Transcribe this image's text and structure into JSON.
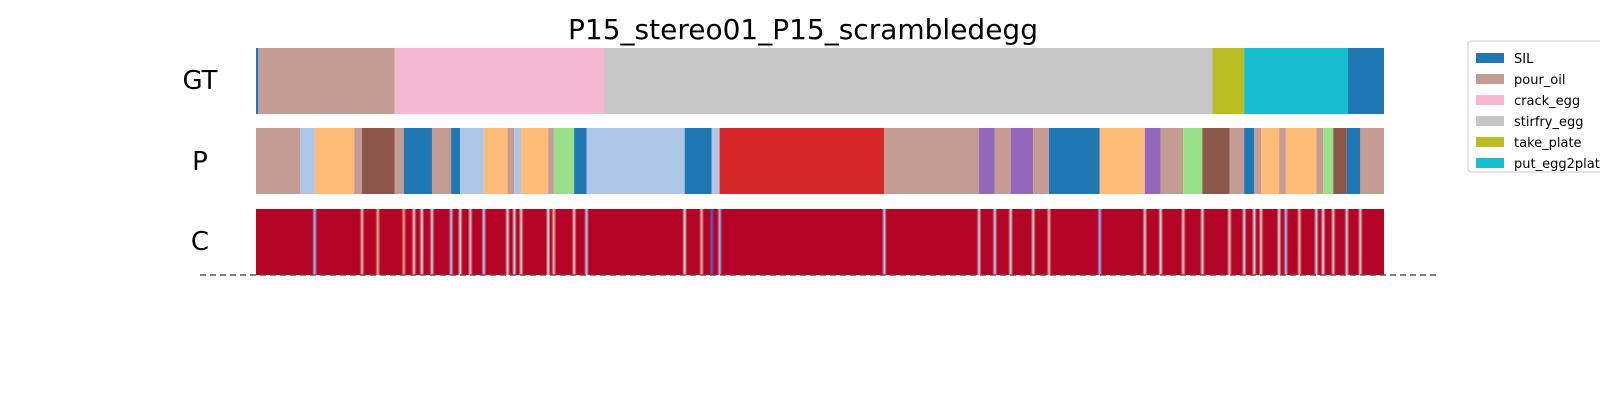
{
  "chart_data": {
    "type": "segmentation",
    "title": "P15_stereo01_P15_scrambledegg",
    "rows": [
      {
        "label": "GT"
      },
      {
        "label": "P"
      },
      {
        "label": "C"
      }
    ],
    "x_range": [
      0,
      1
    ],
    "legend": {
      "placement": "upper right, outside",
      "entries": [
        {
          "label": "SIL",
          "color": "#1f77b4"
        },
        {
          "label": "pour_oil",
          "color": "#c49c94"
        },
        {
          "label": "crack_egg",
          "color": "#f7b6d2"
        },
        {
          "label": "stirfry_egg",
          "color": "#c7c7c7"
        },
        {
          "label": "take_plate",
          "color": "#bcbd22"
        },
        {
          "label": "put_egg2plate",
          "color": "#17becf"
        }
      ]
    },
    "gt_segments": [
      {
        "start": 0.0,
        "end": 0.002,
        "color": "#1f77b4"
      },
      {
        "start": 0.002,
        "end": 0.123,
        "color": "#c49c94"
      },
      {
        "start": 0.123,
        "end": 0.308,
        "color": "#f7b6d2"
      },
      {
        "start": 0.308,
        "end": 0.848,
        "color": "#c7c7c7"
      },
      {
        "start": 0.848,
        "end": 0.876,
        "color": "#bcbd22"
      },
      {
        "start": 0.876,
        "end": 0.968,
        "color": "#17becf"
      },
      {
        "start": 0.968,
        "end": 1.0,
        "color": "#1f77b4"
      }
    ],
    "p_segments": [
      {
        "start": 0.0,
        "end": 0.039,
        "color": "#c49c94"
      },
      {
        "start": 0.039,
        "end": 0.052,
        "color": "#aec7e8"
      },
      {
        "start": 0.052,
        "end": 0.087,
        "color": "#ffbb78"
      },
      {
        "start": 0.087,
        "end": 0.094,
        "color": "#c49c94"
      },
      {
        "start": 0.094,
        "end": 0.123,
        "color": "#8c564b"
      },
      {
        "start": 0.123,
        "end": 0.131,
        "color": "#c49c94"
      },
      {
        "start": 0.131,
        "end": 0.156,
        "color": "#1f77b4"
      },
      {
        "start": 0.156,
        "end": 0.173,
        "color": "#c49c94"
      },
      {
        "start": 0.173,
        "end": 0.181,
        "color": "#1f77b4"
      },
      {
        "start": 0.181,
        "end": 0.202,
        "color": "#aec7e8"
      },
      {
        "start": 0.202,
        "end": 0.223,
        "color": "#ffbb78"
      },
      {
        "start": 0.223,
        "end": 0.229,
        "color": "#c49c94"
      },
      {
        "start": 0.229,
        "end": 0.235,
        "color": "#aec7e8"
      },
      {
        "start": 0.235,
        "end": 0.259,
        "color": "#ffbb78"
      },
      {
        "start": 0.259,
        "end": 0.264,
        "color": "#c49c94"
      },
      {
        "start": 0.264,
        "end": 0.282,
        "color": "#98df8a"
      },
      {
        "start": 0.282,
        "end": 0.293,
        "color": "#1f77b4"
      },
      {
        "start": 0.293,
        "end": 0.38,
        "color": "#aec7e8"
      },
      {
        "start": 0.38,
        "end": 0.404,
        "color": "#1f77b4"
      },
      {
        "start": 0.404,
        "end": 0.411,
        "color": "#aec7e8"
      },
      {
        "start": 0.411,
        "end": 0.557,
        "color": "#d62728"
      },
      {
        "start": 0.557,
        "end": 0.641,
        "color": "#c49c94"
      },
      {
        "start": 0.641,
        "end": 0.655,
        "color": "#9467bd"
      },
      {
        "start": 0.655,
        "end": 0.669,
        "color": "#c49c94"
      },
      {
        "start": 0.669,
        "end": 0.689,
        "color": "#9467bd"
      },
      {
        "start": 0.689,
        "end": 0.703,
        "color": "#c49c94"
      },
      {
        "start": 0.703,
        "end": 0.748,
        "color": "#1f77b4"
      },
      {
        "start": 0.748,
        "end": 0.788,
        "color": "#ffbb78"
      },
      {
        "start": 0.788,
        "end": 0.802,
        "color": "#9467bd"
      },
      {
        "start": 0.802,
        "end": 0.822,
        "color": "#c49c94"
      },
      {
        "start": 0.822,
        "end": 0.839,
        "color": "#98df8a"
      },
      {
        "start": 0.839,
        "end": 0.863,
        "color": "#8c564b"
      },
      {
        "start": 0.863,
        "end": 0.876,
        "color": "#c49c94"
      },
      {
        "start": 0.876,
        "end": 0.885,
        "color": "#1f77b4"
      },
      {
        "start": 0.885,
        "end": 0.891,
        "color": "#c49c94"
      },
      {
        "start": 0.891,
        "end": 0.907,
        "color": "#ffbb78"
      },
      {
        "start": 0.907,
        "end": 0.913,
        "color": "#c49c94"
      },
      {
        "start": 0.913,
        "end": 0.94,
        "color": "#ffbb78"
      },
      {
        "start": 0.94,
        "end": 0.946,
        "color": "#c49c94"
      },
      {
        "start": 0.946,
        "end": 0.955,
        "color": "#98df8a"
      },
      {
        "start": 0.955,
        "end": 0.967,
        "color": "#8c564b"
      },
      {
        "start": 0.967,
        "end": 0.979,
        "color": "#1f77b4"
      },
      {
        "start": 0.979,
        "end": 1.0,
        "color": "#c49c94"
      }
    ],
    "confidence_base_color": "#b40426",
    "confidence_dips": [
      {
        "pos": 0.052,
        "value": 0.3
      },
      {
        "pos": 0.094,
        "value": 0.6
      },
      {
        "pos": 0.108,
        "value": 0.65
      },
      {
        "pos": 0.131,
        "value": 0.7
      },
      {
        "pos": 0.14,
        "value": 0.55
      },
      {
        "pos": 0.147,
        "value": 0.5
      },
      {
        "pos": 0.156,
        "value": 0.45
      },
      {
        "pos": 0.173,
        "value": 0.35
      },
      {
        "pos": 0.181,
        "value": 0.5
      },
      {
        "pos": 0.19,
        "value": 0.55
      },
      {
        "pos": 0.202,
        "value": 0.4
      },
      {
        "pos": 0.223,
        "value": 0.5
      },
      {
        "pos": 0.229,
        "value": 0.45
      },
      {
        "pos": 0.235,
        "value": 0.55
      },
      {
        "pos": 0.259,
        "value": 0.5
      },
      {
        "pos": 0.264,
        "value": 0.6
      },
      {
        "pos": 0.282,
        "value": 0.55
      },
      {
        "pos": 0.293,
        "value": 0.4
      },
      {
        "pos": 0.38,
        "value": 0.5
      },
      {
        "pos": 0.395,
        "value": 0.6
      },
      {
        "pos": 0.404,
        "value": 0.05
      },
      {
        "pos": 0.411,
        "value": 0.3
      },
      {
        "pos": 0.557,
        "value": 0.4
      },
      {
        "pos": 0.641,
        "value": 0.45
      },
      {
        "pos": 0.655,
        "value": 0.4
      },
      {
        "pos": 0.669,
        "value": 0.5
      },
      {
        "pos": 0.689,
        "value": 0.55
      },
      {
        "pos": 0.703,
        "value": 0.6
      },
      {
        "pos": 0.748,
        "value": 0.25
      },
      {
        "pos": 0.788,
        "value": 0.55
      },
      {
        "pos": 0.802,
        "value": 0.5
      },
      {
        "pos": 0.822,
        "value": 0.55
      },
      {
        "pos": 0.839,
        "value": 0.5
      },
      {
        "pos": 0.863,
        "value": 0.55
      },
      {
        "pos": 0.876,
        "value": 0.45
      },
      {
        "pos": 0.885,
        "value": 0.5
      },
      {
        "pos": 0.891,
        "value": 0.55
      },
      {
        "pos": 0.907,
        "value": 0.5
      },
      {
        "pos": 0.913,
        "value": 0.3
      },
      {
        "pos": 0.925,
        "value": 0.6
      },
      {
        "pos": 0.94,
        "value": 0.45
      },
      {
        "pos": 0.946,
        "value": 0.5
      },
      {
        "pos": 0.955,
        "value": 0.55
      },
      {
        "pos": 0.967,
        "value": 0.45
      },
      {
        "pos": 0.979,
        "value": 0.55
      }
    ]
  }
}
